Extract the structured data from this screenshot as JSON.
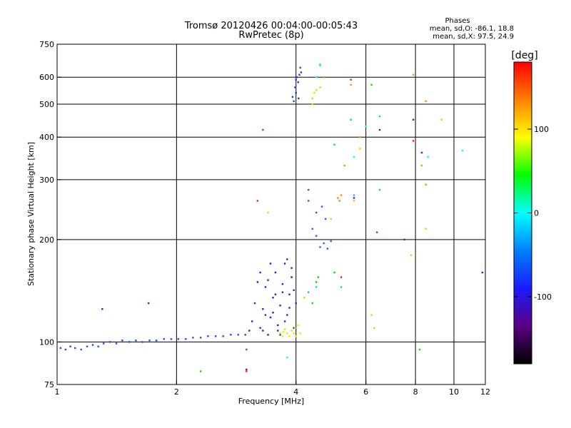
{
  "chart_data": {
    "type": "scatter",
    "title": "Tromsø 20120426 00:04:00-00:05:43",
    "subtitle": "RwPretec (8p)",
    "xlabel": "Frequency [MHz]",
    "ylabel": "Stationary phase Virtual Height [km]",
    "x_scale": "log",
    "y_scale": "log",
    "xlim": [
      1,
      12
    ],
    "ylim": [
      75,
      750
    ],
    "x_ticks": [
      1,
      2,
      4,
      6,
      8,
      10,
      12
    ],
    "x_tick_labels": [
      "1",
      "2",
      "4",
      "6",
      "8",
      "10",
      "12"
    ],
    "x_gridlines": [
      2,
      4,
      6,
      8,
      10
    ],
    "y_ticks": [
      75,
      100,
      200,
      300,
      400,
      500,
      600,
      750
    ],
    "y_tick_labels": [
      "75",
      "100",
      "200",
      "300",
      "400",
      "500",
      "600",
      "750"
    ],
    "y_gridlines": [
      100,
      200,
      300,
      400,
      500,
      600
    ],
    "grid": true,
    "legend": {
      "title": "Phases",
      "lines": [
        "mean, sd,O: -86.1, 18.8",
        "mean, sd,X:  97.5, 24.9"
      ],
      "placement": "top-right"
    },
    "colorbar": {
      "label": "[deg]",
      "range": [
        -180,
        180
      ],
      "ticks": [
        100,
        0,
        -100
      ],
      "tick_labels": [
        "100",
        "0",
        "-100"
      ],
      "colormap": [
        "#000000",
        "#5a0080",
        "#1a1aff",
        "#0080ff",
        "#00ffff",
        "#00ff00",
        "#ffff00",
        "#ff8000",
        "#ff0000"
      ]
    },
    "series": [
      {
        "color": "#1a50e6",
        "points": [
          [
            1.02,
            96
          ],
          [
            1.05,
            95
          ],
          [
            1.08,
            97
          ],
          [
            1.11,
            96
          ],
          [
            1.15,
            95
          ],
          [
            1.19,
            97
          ],
          [
            1.23,
            98
          ],
          [
            1.27,
            97
          ],
          [
            1.31,
            99
          ],
          [
            1.36,
            100
          ],
          [
            1.41,
            99
          ],
          [
            1.46,
            101
          ],
          [
            1.52,
            100
          ],
          [
            1.58,
            101
          ],
          [
            1.64,
            100
          ],
          [
            1.71,
            101
          ],
          [
            1.78,
            101
          ],
          [
            1.86,
            102
          ],
          [
            1.94,
            102
          ],
          [
            2.02,
            102
          ],
          [
            2.11,
            102
          ],
          [
            2.2,
            103
          ],
          [
            2.3,
            103
          ],
          [
            2.4,
            104
          ],
          [
            2.51,
            104
          ],
          [
            2.62,
            104
          ],
          [
            2.74,
            105
          ],
          [
            2.86,
            105
          ],
          [
            2.98,
            105
          ]
        ]
      },
      {
        "color": "#2020e0",
        "points": [
          [
            3.05,
            108
          ],
          [
            3.1,
            115
          ],
          [
            3.15,
            130
          ],
          [
            3.2,
            150
          ],
          [
            3.25,
            110
          ],
          [
            3.3,
            125
          ],
          [
            3.35,
            145
          ],
          [
            3.4,
            105
          ],
          [
            3.45,
            118
          ],
          [
            3.5,
            135
          ],
          [
            3.55,
            160
          ],
          [
            3.6,
            112
          ],
          [
            3.65,
            128
          ],
          [
            3.7,
            148
          ],
          [
            3.75,
            170
          ],
          [
            3.8,
            120
          ],
          [
            3.85,
            138
          ],
          [
            3.9,
            155
          ],
          [
            3.95,
            110
          ],
          [
            4.0,
            130
          ],
          [
            3.3,
            108
          ],
          [
            3.5,
            122
          ],
          [
            3.7,
            140
          ],
          [
            3.9,
            165
          ],
          [
            3.4,
            152
          ],
          [
            3.6,
            108
          ],
          [
            3.8,
            175
          ],
          [
            3.35,
            120
          ],
          [
            3.55,
            138
          ],
          [
            3.75,
            115
          ],
          [
            3.95,
            142
          ],
          [
            3.25,
            160
          ],
          [
            3.45,
            170
          ],
          [
            3.65,
            105
          ],
          [
            3.85,
            126
          ]
        ]
      },
      {
        "color": "#1e3cd8",
        "points": [
          [
            3.95,
            510
          ],
          [
            4.0,
            540
          ],
          [
            4.05,
            580
          ],
          [
            4.08,
            610
          ],
          [
            4.1,
            640
          ],
          [
            4.02,
            600
          ],
          [
            3.98,
            560
          ],
          [
            4.06,
            520
          ],
          [
            4.12,
            620
          ],
          [
            4.0,
            590
          ],
          [
            3.92,
            525
          ]
        ]
      },
      {
        "color": "#e6e600",
        "points": [
          [
            3.65,
            106
          ],
          [
            3.72,
            107
          ],
          [
            3.8,
            106
          ],
          [
            3.9,
            108
          ],
          [
            3.98,
            110
          ],
          [
            4.05,
            112
          ],
          [
            3.85,
            104
          ],
          [
            4.0,
            104
          ],
          [
            3.75,
            109
          ],
          [
            4.1,
            106
          ],
          [
            3.7,
            104
          ],
          [
            3.95,
            106
          ]
        ]
      },
      {
        "color": "#1a60ff",
        "points": [
          [
            4.6,
            190
          ],
          [
            4.7,
            195
          ],
          [
            4.8,
            188
          ],
          [
            4.9,
            198
          ],
          [
            4.5,
            205
          ],
          [
            4.4,
            215
          ],
          [
            4.65,
            250
          ],
          [
            4.3,
            280
          ],
          [
            4.5,
            240
          ],
          [
            4.75,
            230
          ]
        ]
      },
      {
        "color": "#00c8ff",
        "points": [
          [
            4.3,
            140
          ],
          [
            4.5,
            145
          ],
          [
            5.2,
            145
          ],
          [
            5.5,
            450
          ],
          [
            5.6,
            270
          ],
          [
            6.5,
            460
          ],
          [
            6.5,
            280
          ],
          [
            5.0,
            380
          ],
          [
            4.6,
            650
          ]
        ]
      },
      {
        "color": "#ff8c00",
        "points": [
          [
            5.1,
            265
          ],
          [
            5.2,
            270
          ],
          [
            5.15,
            260
          ],
          [
            5.3,
            330
          ],
          [
            4.7,
            600
          ],
          [
            5.5,
            570
          ],
          [
            7.9,
            610
          ],
          [
            8.5,
            510
          ],
          [
            8.3,
            330
          ],
          [
            8.5,
            290
          ],
          [
            5.8,
            400
          ]
        ]
      },
      {
        "color": "#e6d200",
        "points": [
          [
            4.4,
            520
          ],
          [
            4.45,
            540
          ],
          [
            4.5,
            550
          ],
          [
            4.4,
            500
          ],
          [
            4.6,
            560
          ],
          [
            5.6,
            260
          ],
          [
            7.8,
            180
          ],
          [
            8.5,
            215
          ],
          [
            9.3,
            450
          ],
          [
            6.3,
            110
          ],
          [
            6.2,
            120
          ],
          [
            4.2,
            135
          ],
          [
            3.4,
            240
          ],
          [
            4.9,
            230
          ],
          [
            5.8,
            370
          ]
        ]
      },
      {
        "color": "#ff2000",
        "points": [
          [
            3.2,
            260
          ],
          [
            3.0,
            95
          ],
          [
            3.0,
            82
          ],
          [
            4.3,
            260
          ],
          [
            5.2,
            155
          ],
          [
            6.4,
            210
          ],
          [
            7.9,
            390
          ],
          [
            5.5,
            590
          ],
          [
            3.3,
            420
          ]
        ]
      },
      {
        "color": "#00e000",
        "points": [
          [
            4.5,
            150
          ],
          [
            4.55,
            155
          ],
          [
            4.4,
            130
          ],
          [
            5.0,
            160
          ],
          [
            6.2,
            570
          ],
          [
            2.3,
            82
          ],
          [
            8.2,
            95
          ]
        ]
      },
      {
        "color": "#8000c0",
        "points": [
          [
            1.7,
            130
          ],
          [
            3.0,
            83
          ],
          [
            6.5,
            420
          ],
          [
            7.5,
            200
          ],
          [
            7.9,
            450
          ],
          [
            8.3,
            360
          ],
          [
            11.8,
            160
          ],
          [
            5.6,
            265
          ],
          [
            1.3,
            125
          ]
        ]
      },
      {
        "color": "#00ffff",
        "points": [
          [
            4.6,
            655
          ],
          [
            5.6,
            350
          ],
          [
            4.5,
            600
          ],
          [
            10.5,
            365
          ],
          [
            6.0,
            430
          ],
          [
            3.8,
            90
          ],
          [
            8.6,
            350
          ]
        ]
      }
    ]
  }
}
